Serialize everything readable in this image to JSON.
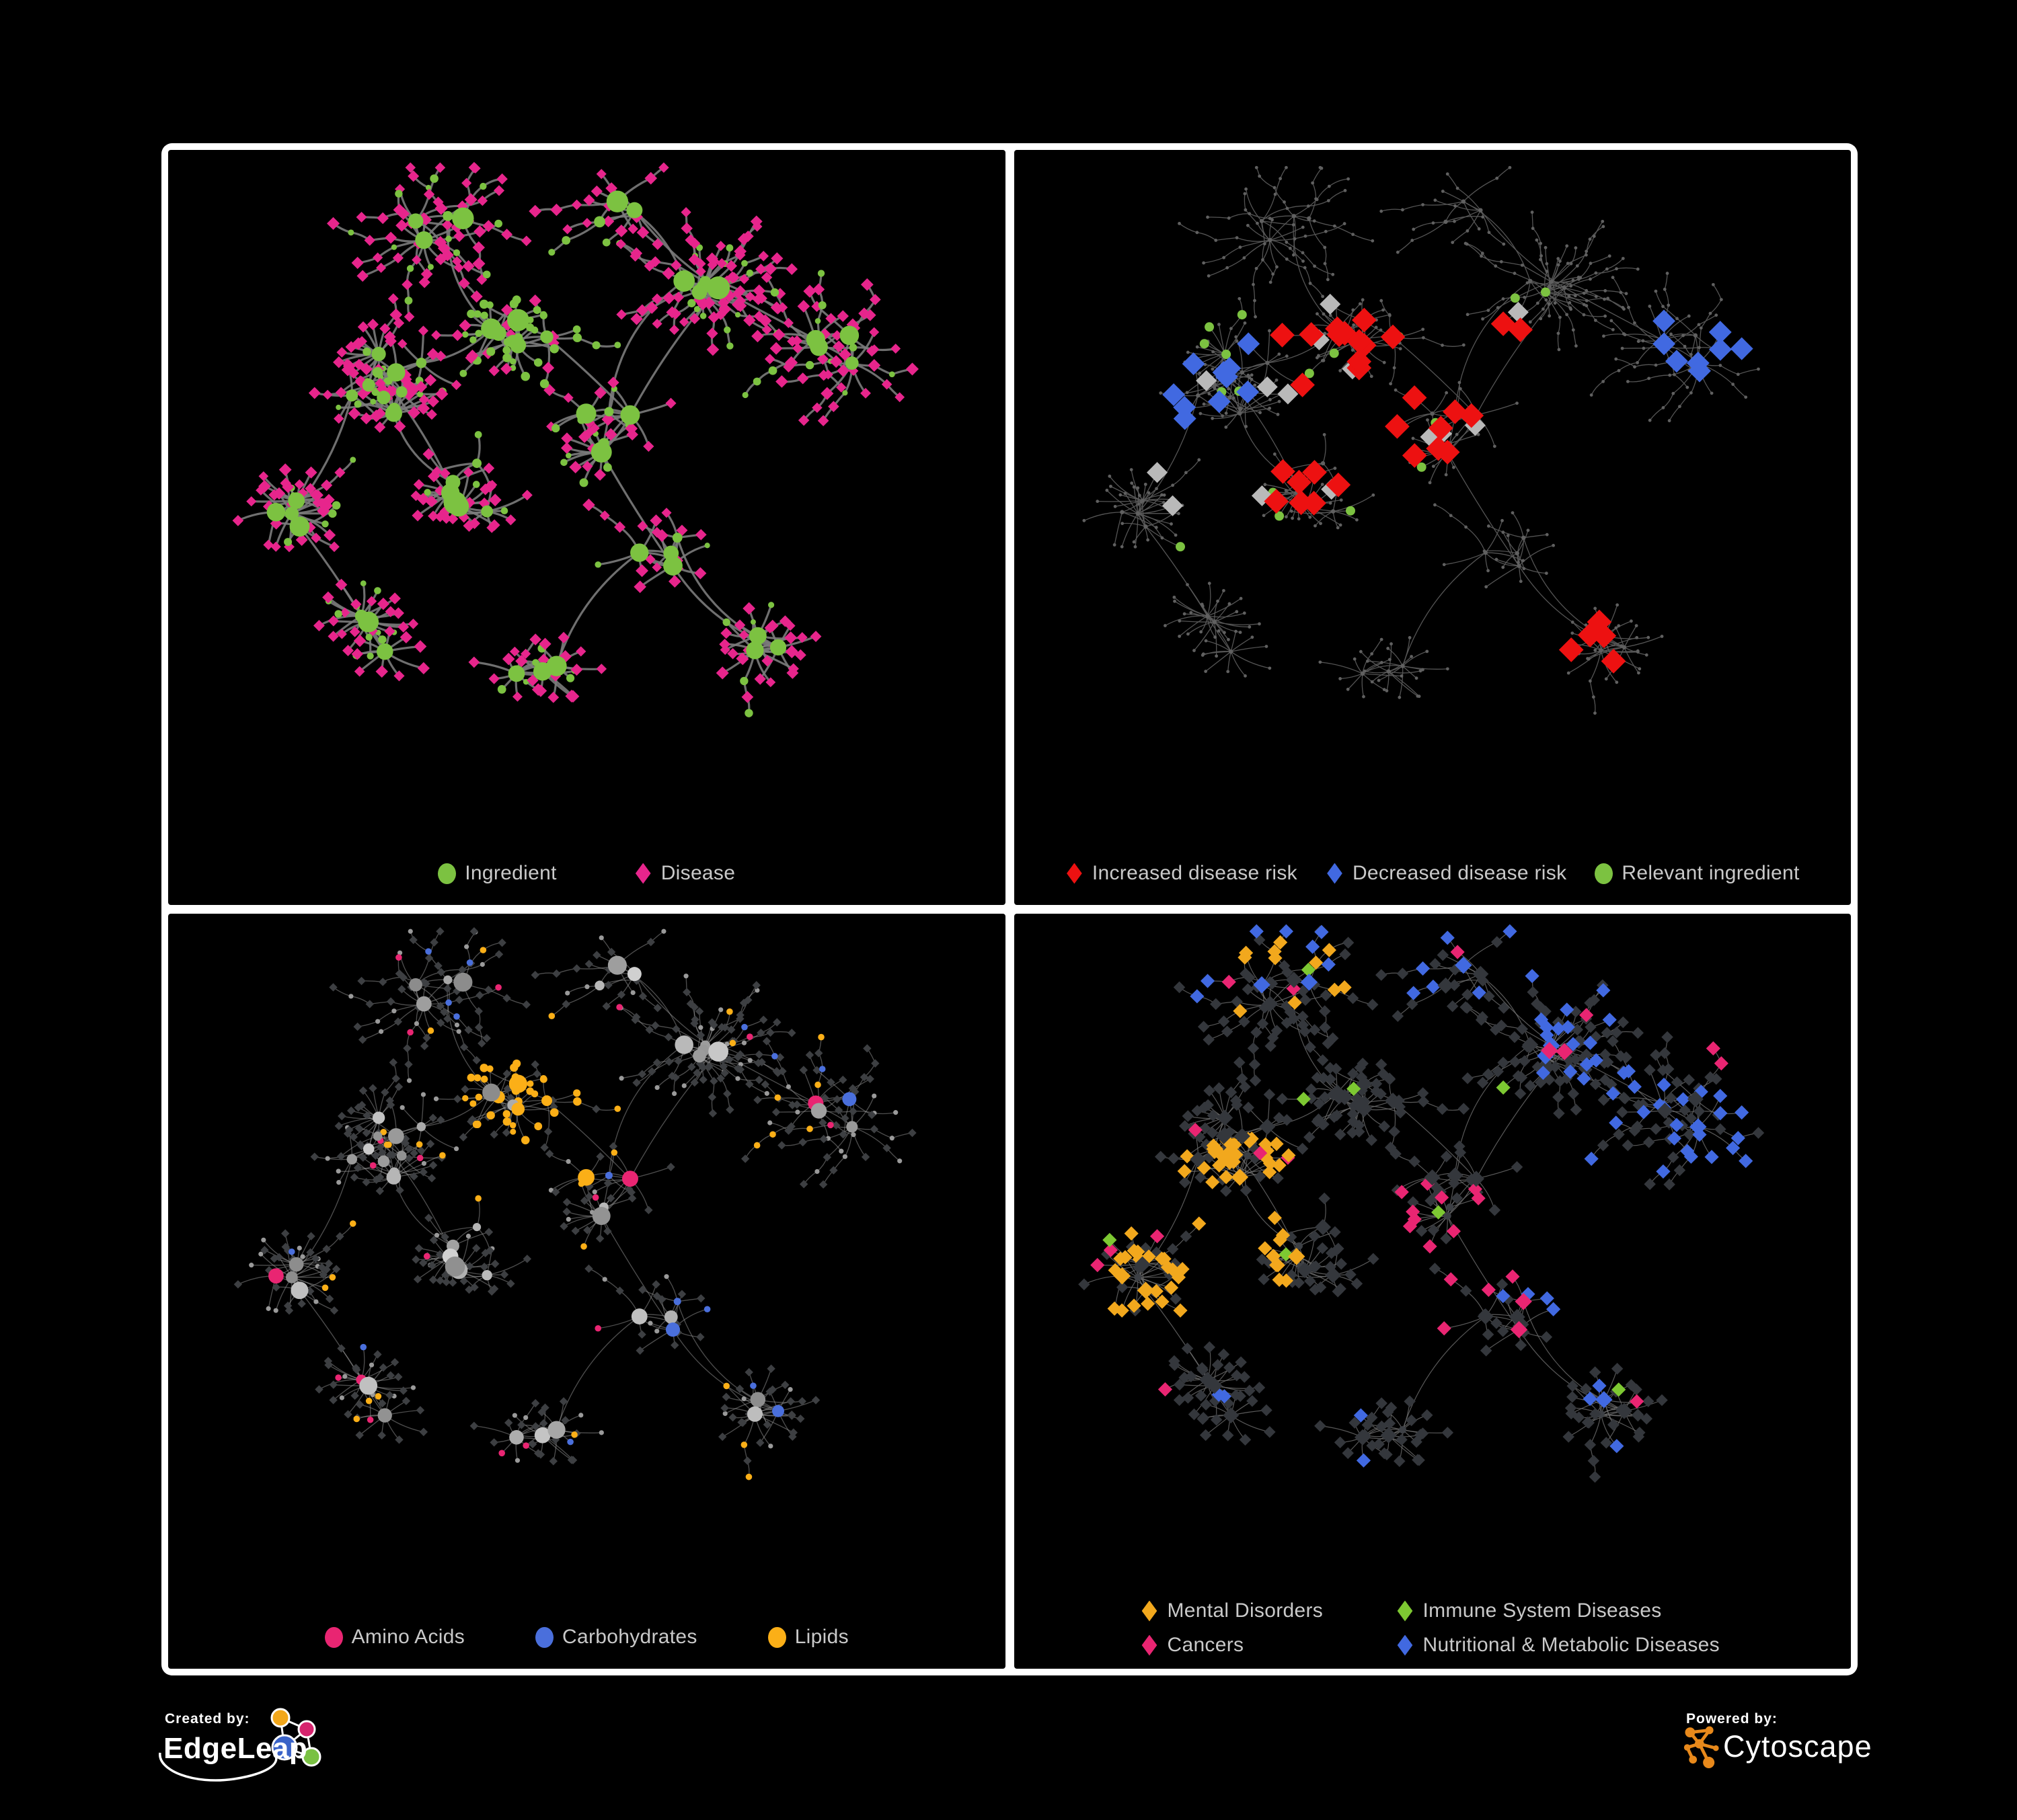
{
  "branding": {
    "created_by": "Created by:",
    "edgeleap": "EdgeLeap",
    "powered_by": "Powered by:",
    "cytoscape": "Cytoscape"
  },
  "panels": [
    {
      "name": "ingredient-disease-network",
      "legend": [
        {
          "label": "Ingredient",
          "shape": "circle",
          "color": "#7cc241"
        },
        {
          "label": "Disease",
          "shape": "diamond",
          "color": "#e7258c"
        }
      ]
    },
    {
      "name": "disease-risk-network",
      "legend": [
        {
          "label": "Increased disease risk",
          "shape": "diamond",
          "color": "#ed1111"
        },
        {
          "label": "Decreased disease risk",
          "shape": "diamond",
          "color": "#4169e1"
        },
        {
          "label": "Relevant ingredient",
          "shape": "circle",
          "color": "#7cc241"
        }
      ]
    },
    {
      "name": "nutrient-class-network",
      "legend": [
        {
          "label": "Amino Acids",
          "shape": "circle",
          "color": "#e92572"
        },
        {
          "label": "Carbohydrates",
          "shape": "circle",
          "color": "#4a6fdc"
        },
        {
          "label": "Lipids",
          "shape": "circle",
          "color": "#fbaf17"
        }
      ]
    },
    {
      "name": "disease-class-network",
      "legend": [
        {
          "label": "Mental Disorders",
          "shape": "diamond",
          "color": "#f2a81d"
        },
        {
          "label": "Immune System Diseases",
          "shape": "diamond",
          "color": "#7dc832"
        },
        {
          "label": "Cancers",
          "shape": "diamond",
          "color": "#e92572"
        },
        {
          "label": "Nutritional & Metabolic Diseases",
          "shape": "diamond",
          "color": "#4169e1"
        }
      ]
    }
  ],
  "network_style": {
    "edges": [
      {
        "color": "#7b7b7b",
        "width": 3.2,
        "opacity": 0.9
      },
      {
        "color": "#585858",
        "width": 1.3,
        "opacity": 0.95
      },
      {
        "color": "#9a9a9a",
        "width": 1.35,
        "opacity": 0.5
      },
      {
        "color": "#6f6f6f",
        "width": 1.2,
        "opacity": 0.8
      }
    ],
    "p1": {
      "ingredient": "#7cc241",
      "disease": "#e7258c"
    },
    "p2": {
      "increased": "#ed1111",
      "decreased": "#4169e1",
      "neutral": "#b9b9b9",
      "ingredient": "#7cc241",
      "base": "#606060"
    },
    "p3": {
      "amino": "#e92572",
      "carb": "#4a6fdc",
      "lipid": "#fbaf17",
      "hub_gray": "#9a9a9a",
      "leaf": "#3d3f42"
    },
    "p4": {
      "mental": "#f2a81d",
      "immune": "#7dc832",
      "cancer": "#e92572",
      "metabolic": "#4169e1",
      "base": "#34373c",
      "dot": "#3d4045"
    }
  },
  "logo_colors": {
    "edgeleap": {
      "orange": "#f2a71b",
      "magenta": "#d6246e",
      "blue": "#3a63c8",
      "green": "#7ac143",
      "stroke": "#ffffff"
    },
    "cytoscape": {
      "orange": "#e8891b"
    }
  }
}
